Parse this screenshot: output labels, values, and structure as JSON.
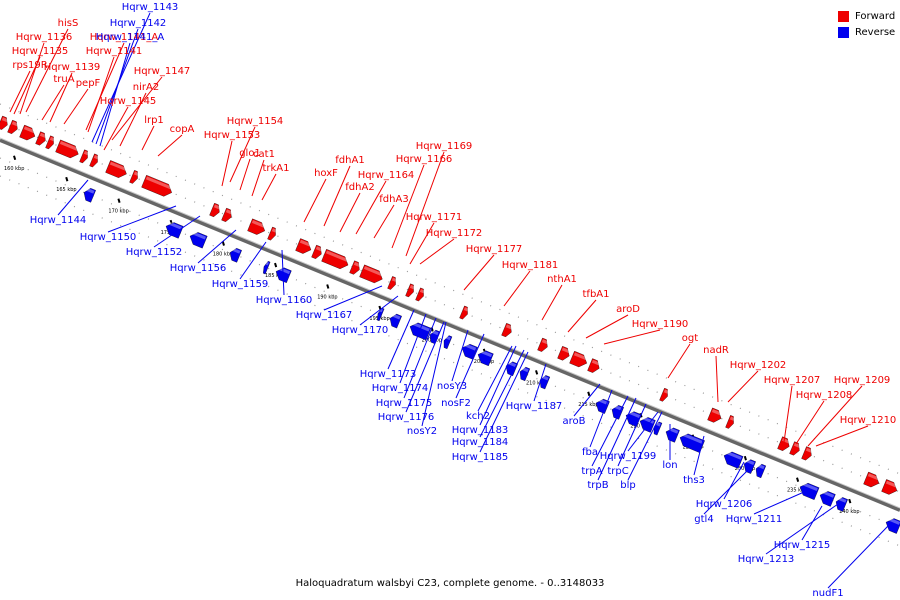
{
  "colors": {
    "forward": "#ee0000",
    "reverse": "#0000ee",
    "backbone": "#666666"
  },
  "legend": [
    {
      "label": "Forward",
      "color": "#ee0000"
    },
    {
      "label": "Reverse",
      "color": "#0000ee"
    }
  ],
  "caption": "Haloquadratum walsbyi C23, complete genome. - 0..3148033",
  "ticks": [
    "160 kbp",
    "165 kbp",
    "170 kbp",
    "175 kbp",
    "180 kbp",
    "185 kbp",
    "190 kbp",
    "195 kbp",
    "200 kbp",
    "205 kbp",
    "210 kbp",
    "215 kbp",
    "220 kbp",
    "225 kbp",
    "230 kbp",
    "235 kbp",
    "240 kbp"
  ],
  "forward_labels": [
    "hisS",
    "Hqrw_1136",
    "Hqrw_1135",
    "rps19R",
    "truA",
    "Hqrw_1139",
    "pepF",
    "Hqrw_1141_A",
    "Hqrw_1141",
    "Hqrw_1147",
    "nirA2",
    "Hqrw_1145",
    "lrp1",
    "copA",
    "Hqrw_1154",
    "Hqrw_1153",
    "glo1",
    "cat1",
    "trkA1",
    "hoxF",
    "fdhA1",
    "fdhA2",
    "fdhA3",
    "Hqrw_1164",
    "Hqrw_1166",
    "Hqrw_1169",
    "Hqrw_1171",
    "Hqrw_1172",
    "Hqrw_1177",
    "Hqrw_1181",
    "nthA1",
    "tfbA1",
    "aroD",
    "Hqrw_1190",
    "ogt",
    "nadR",
    "Hqrw_1202",
    "Hqrw_1207",
    "Hqrw_1208",
    "Hqrw_1209",
    "Hqrw_1210"
  ],
  "reverse_labels": [
    "Hqrw_1143",
    "Hqrw_1142",
    "Hqrw_1141_A",
    "Hqrw_1144",
    "Hqrw_1150",
    "Hqrw_1152",
    "Hqrw_1156",
    "Hqrw_1159",
    "Hqrw_1160",
    "Hqrw_1167",
    "Hqrw_1170",
    "Hqrw_1173",
    "Hqrw_1174",
    "Hqrw_1175",
    "Hqrw_1176",
    "nosY2",
    "nosY3",
    "nosF2",
    "kch2",
    "Hqrw_1183",
    "Hqrw_1184",
    "Hqrw_1185",
    "Hqrw_1187",
    "aroB",
    "fba",
    "trpA",
    "trpB",
    "trpC",
    "Hqrw_1199",
    "blp",
    "lon",
    "ths3",
    "Hqrw_1206",
    "gtl4",
    "Hqrw_1211",
    "Hqrw_1215",
    "Hqrw_1213",
    "nudF1"
  ]
}
